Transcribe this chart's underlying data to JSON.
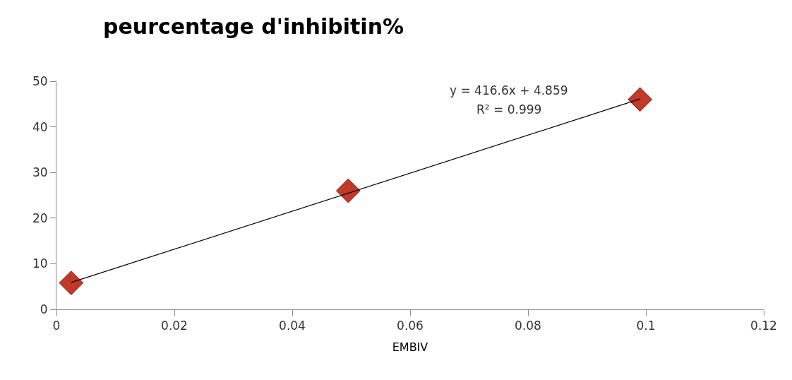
{
  "chart_data": {
    "type": "scatter",
    "title": "peurcentage d'inhibitin%",
    "xlabel": "EMBIV",
    "x": [
      0.0025,
      0.0495,
      0.099
    ],
    "series": [
      {
        "color": "#c0392b",
        "values": [
          5.8,
          26,
          46
        ],
        "marker": "diamond"
      },
      {
        "type": "line",
        "color": "#000000",
        "x": [
          0.0025,
          0.099
        ],
        "values": [
          5.9,
          46.1
        ],
        "marker": "none"
      }
    ],
    "annotations": [
      "y = 416.6x + 4.859",
      "R² = 0.999"
    ],
    "xlim": [
      0,
      0.12
    ],
    "xticks": [
      0,
      0.02,
      0.04,
      0.06,
      0.08,
      0.1,
      0.12
    ],
    "ylim": [
      0,
      50
    ],
    "yticks": [
      0,
      10,
      20,
      30,
      40,
      50
    ]
  }
}
